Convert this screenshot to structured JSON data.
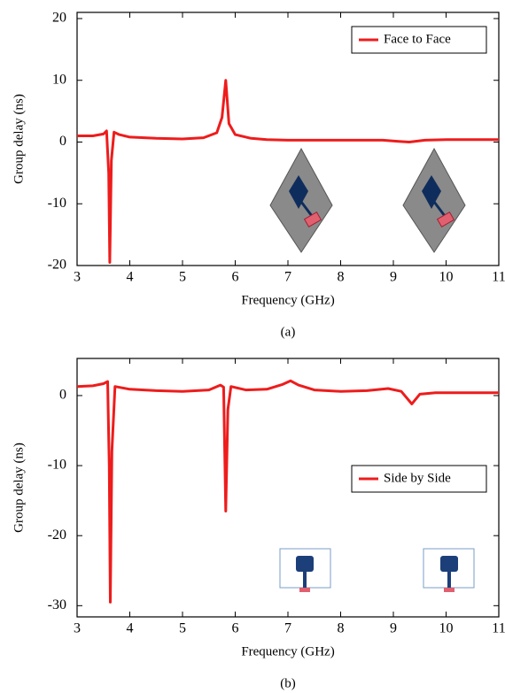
{
  "chart_data": [
    {
      "type": "line",
      "xlabel": "Frequency (GHz)",
      "ylabel": "Group delay (ns)",
      "caption": "(a)",
      "xlim": [
        3,
        11
      ],
      "ylim": [
        -20,
        21
      ],
      "xticks": [
        3,
        4,
        5,
        6,
        7,
        8,
        9,
        10,
        11
      ],
      "yticks": [
        -20,
        -10,
        0,
        10,
        20
      ],
      "legend": "upper right",
      "series": [
        {
          "name": "Face to Face",
          "color": "#ee1c1c",
          "x": [
            3,
            3.3,
            3.5,
            3.56,
            3.6,
            3.62,
            3.65,
            3.7,
            3.8,
            4,
            4.5,
            5,
            5.4,
            5.65,
            5.75,
            5.82,
            5.88,
            6,
            6.3,
            6.6,
            7,
            8,
            8.8,
            9.1,
            9.3,
            9.6,
            10,
            11
          ],
          "y": [
            1,
            1,
            1.3,
            1.8,
            -5,
            -19.5,
            -3,
            1.6,
            1.2,
            0.8,
            0.6,
            0.5,
            0.7,
            1.5,
            4,
            10,
            3,
            1.2,
            0.6,
            0.4,
            0.3,
            0.3,
            0.3,
            0.1,
            0,
            0.3,
            0.4,
            0.4
          ]
        }
      ]
    },
    {
      "type": "line",
      "xlabel": "Frequency (GHz)",
      "ylabel": "Group delay (ns)",
      "caption": "(b)",
      "xlim": [
        3,
        11
      ],
      "ylim": [
        -31.6,
        5.3
      ],
      "xticks": [
        3,
        4,
        5,
        6,
        7,
        8,
        9,
        10,
        11
      ],
      "yticks": [
        -30,
        -20,
        -10,
        0
      ],
      "legend": "center right",
      "series": [
        {
          "name": "Side by Side",
          "color": "#ee1c1c",
          "x": [
            3,
            3.3,
            3.5,
            3.58,
            3.61,
            3.63,
            3.66,
            3.72,
            4,
            4.5,
            5,
            5.5,
            5.72,
            5.78,
            5.82,
            5.86,
            5.92,
            6.2,
            6.6,
            6.9,
            7.05,
            7.2,
            7.5,
            8,
            8.5,
            8.9,
            9.15,
            9.35,
            9.5,
            9.8,
            11
          ],
          "y": [
            1.3,
            1.4,
            1.7,
            2,
            -10,
            -29.5,
            -8,
            1.3,
            0.9,
            0.7,
            0.6,
            0.8,
            1.5,
            1.2,
            -16.5,
            -2,
            1.3,
            0.8,
            0.9,
            1.6,
            2.1,
            1.5,
            0.8,
            0.6,
            0.7,
            1.0,
            0.6,
            -1.2,
            0.2,
            0.4,
            0.4
          ]
        }
      ]
    }
  ]
}
